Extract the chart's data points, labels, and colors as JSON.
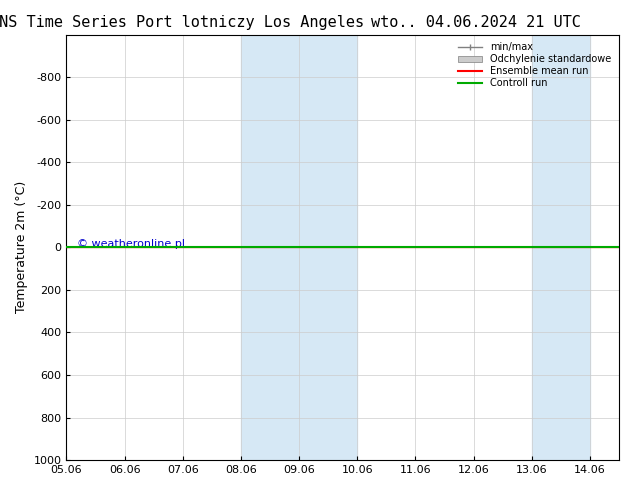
{
  "title_left": "ENS Time Series Port lotniczy Los Angeles",
  "title_right": "wto.. 04.06.2024 21 UTC",
  "ylabel": "Temperature 2m (°C)",
  "ylim": [
    -1000,
    1000
  ],
  "yticks": [
    -800,
    -600,
    -400,
    -200,
    0,
    200,
    400,
    600,
    800,
    1000
  ],
  "xlim_start": "2024-06-05",
  "xlim_end": "2024-06-14",
  "xtick_labels": [
    "05.06",
    "06.06",
    "07.06",
    "08.06",
    "09.06",
    "10.06",
    "11.06",
    "12.06",
    "13.06",
    "14.06"
  ],
  "shaded_bands": [
    {
      "x_start": "2024-06-08",
      "x_end": "2024-06-10"
    },
    {
      "x_start": "2024-06-13",
      "x_end": "2024-06-14"
    }
  ],
  "shade_color": "#d6e8f5",
  "green_line_y": 0,
  "green_line_color": "#00aa00",
  "red_line_color": "#ff0000",
  "watermark": "© weatheronline.pl",
  "watermark_color": "#0000cc",
  "legend_items": [
    "min/max",
    "Odchylenie standardowe",
    "Ensemble mean run",
    "Controll run"
  ],
  "background_color": "#ffffff",
  "plot_bg_color": "#ffffff",
  "border_color": "#000000",
  "title_fontsize": 11,
  "tick_fontsize": 8,
  "ylabel_fontsize": 9
}
